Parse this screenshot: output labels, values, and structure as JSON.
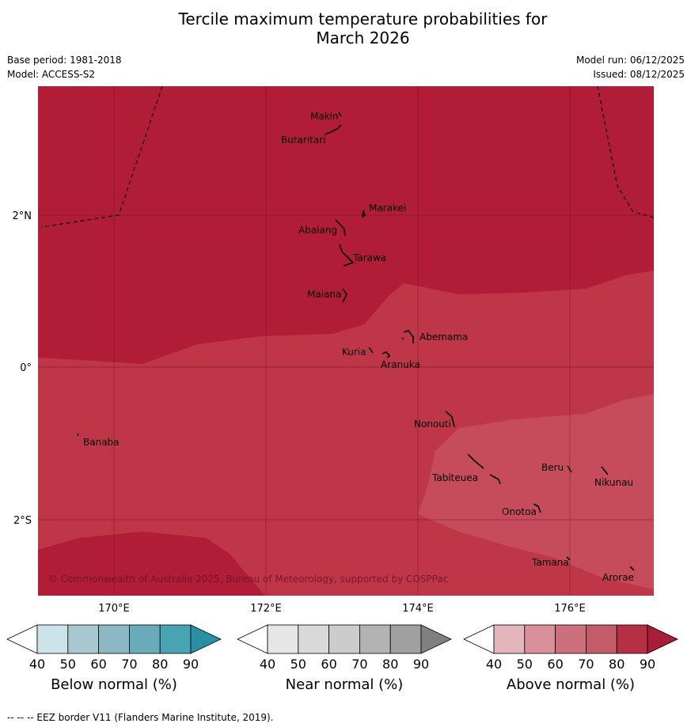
{
  "title_line1": "Tercile maximum temperature probabilities for",
  "title_line2": "March 2026",
  "base_period": "Base period: 1981-2018",
  "model": "Model: ACCESS-S2",
  "model_run": "Model run: 06/12/2025",
  "issued": "Issued: 08/12/2025",
  "lat_labels": [
    "2°N",
    "0°",
    "2°S"
  ],
  "lon_labels": [
    "170°E",
    "172°E",
    "174°E",
    "176°E"
  ],
  "places": [
    {
      "name": "Makin"
    },
    {
      "name": "Butaritari"
    },
    {
      "name": "Marakei"
    },
    {
      "name": "Abaiang"
    },
    {
      "name": "Tarawa"
    },
    {
      "name": "Maiana"
    },
    {
      "name": "Abemama"
    },
    {
      "name": "Kuria"
    },
    {
      "name": "Aranuka"
    },
    {
      "name": "Nonouti"
    },
    {
      "name": "Banaba"
    },
    {
      "name": "Beru"
    },
    {
      "name": "Nikunau"
    },
    {
      "name": "Tabiteuea"
    },
    {
      "name": "Onotoa"
    },
    {
      "name": "Tamana"
    },
    {
      "name": "Arorae"
    }
  ],
  "copyright": "© Commonwealth of Australia 2025, Bureau of Meteorology, supported by COSPPac",
  "colorbars": [
    {
      "title": "Below normal (%)",
      "ticks": [
        "40",
        "50",
        "60",
        "70",
        "80",
        "90"
      ],
      "colors": [
        "#ffffff",
        "#cde3ea",
        "#a7c8d0",
        "#8bb8c4",
        "#6aabbb",
        "#4aa3b3",
        "#2b8fa3"
      ]
    },
    {
      "title": "Near normal (%)",
      "ticks": [
        "40",
        "50",
        "60",
        "70",
        "80",
        "90"
      ],
      "colors": [
        "#ffffff",
        "#e6e6e6",
        "#d9d9d9",
        "#cccccc",
        "#b3b3b3",
        "#a0a0a0",
        "#808080"
      ]
    },
    {
      "title": "Above normal (%)",
      "ticks": [
        "40",
        "50",
        "60",
        "70",
        "80",
        "90"
      ],
      "colors": [
        "#ffffff",
        "#e3b6bd",
        "#d9909b",
        "#cd707d",
        "#c45b68",
        "#b72f45",
        "#a81d3a"
      ]
    }
  ],
  "map_colors": {
    "dark": "#b11c37",
    "medium": "#bf3649",
    "light": "#c64c5c"
  },
  "footnote": "--  --  -- EEZ border V11 (Flanders Marine Institute, 2019)."
}
